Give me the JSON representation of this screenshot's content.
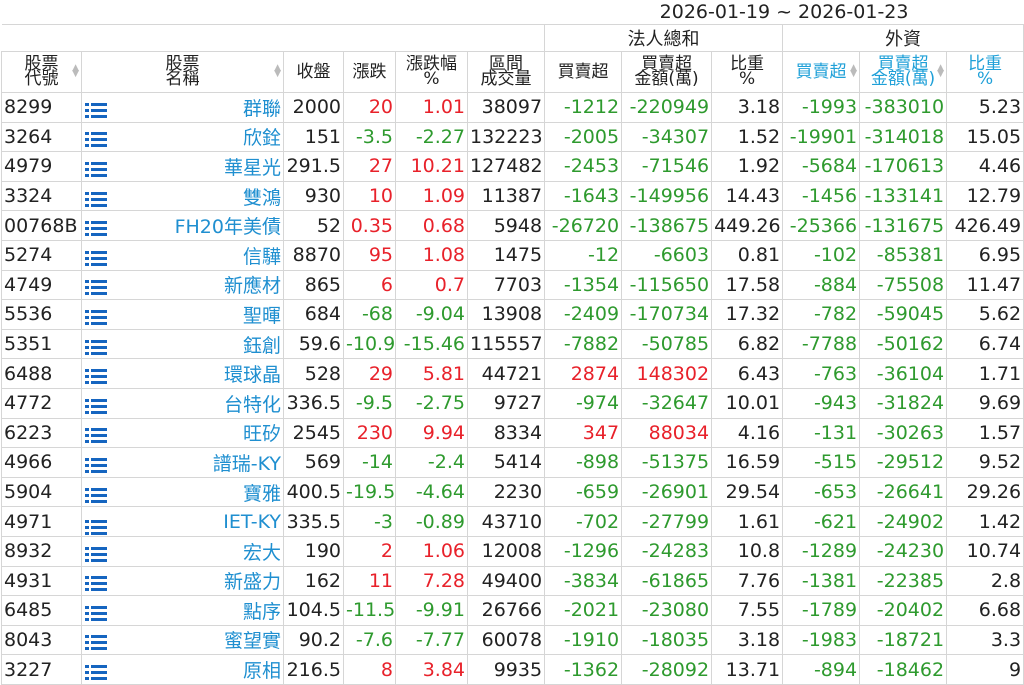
{
  "date_range": "2026-01-19 ~ 2026-01-23",
  "groups": {
    "institutional": "法人總和",
    "foreign": "外資"
  },
  "columns": {
    "code": [
      "股票",
      "代號"
    ],
    "name": [
      "股票",
      "名稱"
    ],
    "close": [
      "收盤",
      ""
    ],
    "change": [
      "漲跌",
      ""
    ],
    "change_pct": [
      "漲跌幅",
      "%"
    ],
    "volume": [
      "區間",
      "成交量"
    ],
    "inst_net": [
      "買賣超",
      ""
    ],
    "inst_amount": [
      "買賣超",
      "金額(萬)"
    ],
    "inst_ratio": [
      "比重",
      "%"
    ],
    "for_net": [
      "買賣超",
      ""
    ],
    "for_amount": [
      "買賣超",
      "金額(萬)"
    ],
    "for_ratio": [
      "比重",
      "%"
    ]
  },
  "colors": {
    "up": "#e8212a",
    "down": "#2e9a2e",
    "link": "#1f8fd0",
    "foreign_header": "#1fa0d8",
    "list_icon": "#1565c0"
  },
  "rows": [
    {
      "code": "8299",
      "name": "群聯",
      "close": "2000",
      "change": "20",
      "change_pct": "1.01",
      "volume": "38097",
      "inst_net": "-1212",
      "inst_amount": "-220949",
      "inst_ratio": "3.18",
      "for_net": "-1993",
      "for_amount": "-383010",
      "for_ratio": "5.23"
    },
    {
      "code": "3264",
      "name": "欣銓",
      "close": "151",
      "change": "-3.5",
      "change_pct": "-2.27",
      "volume": "132223",
      "inst_net": "-2005",
      "inst_amount": "-34307",
      "inst_ratio": "1.52",
      "for_net": "-19901",
      "for_amount": "-314018",
      "for_ratio": "15.05"
    },
    {
      "code": "4979",
      "name": "華星光",
      "close": "291.5",
      "change": "27",
      "change_pct": "10.21",
      "volume": "127482",
      "inst_net": "-2453",
      "inst_amount": "-71546",
      "inst_ratio": "1.92",
      "for_net": "-5684",
      "for_amount": "-170613",
      "for_ratio": "4.46"
    },
    {
      "code": "3324",
      "name": "雙鴻",
      "close": "930",
      "change": "10",
      "change_pct": "1.09",
      "volume": "11387",
      "inst_net": "-1643",
      "inst_amount": "-149956",
      "inst_ratio": "14.43",
      "for_net": "-1456",
      "for_amount": "-133141",
      "for_ratio": "12.79"
    },
    {
      "code": "00768B",
      "name": "FH20年美債",
      "close": "52",
      "change": "0.35",
      "change_pct": "0.68",
      "volume": "5948",
      "inst_net": "-26720",
      "inst_amount": "-138675",
      "inst_ratio": "449.26",
      "for_net": "-25366",
      "for_amount": "-131675",
      "for_ratio": "426.49"
    },
    {
      "code": "5274",
      "name": "信驊",
      "close": "8870",
      "change": "95",
      "change_pct": "1.08",
      "volume": "1475",
      "inst_net": "-12",
      "inst_amount": "-6603",
      "inst_ratio": "0.81",
      "for_net": "-102",
      "for_amount": "-85381",
      "for_ratio": "6.95"
    },
    {
      "code": "4749",
      "name": "新應材",
      "close": "865",
      "change": "6",
      "change_pct": "0.7",
      "volume": "7703",
      "inst_net": "-1354",
      "inst_amount": "-115650",
      "inst_ratio": "17.58",
      "for_net": "-884",
      "for_amount": "-75508",
      "for_ratio": "11.47"
    },
    {
      "code": "5536",
      "name": "聖暉",
      "close": "684",
      "change": "-68",
      "change_pct": "-9.04",
      "volume": "13908",
      "inst_net": "-2409",
      "inst_amount": "-170734",
      "inst_ratio": "17.32",
      "for_net": "-782",
      "for_amount": "-59045",
      "for_ratio": "5.62"
    },
    {
      "code": "5351",
      "name": "鈺創",
      "close": "59.6",
      "change": "-10.9",
      "change_pct": "-15.46",
      "volume": "115557",
      "inst_net": "-7882",
      "inst_amount": "-50785",
      "inst_ratio": "6.82",
      "for_net": "-7788",
      "for_amount": "-50162",
      "for_ratio": "6.74"
    },
    {
      "code": "6488",
      "name": "環球晶",
      "close": "528",
      "change": "29",
      "change_pct": "5.81",
      "volume": "44721",
      "inst_net": "2874",
      "inst_amount": "148302",
      "inst_ratio": "6.43",
      "for_net": "-763",
      "for_amount": "-36104",
      "for_ratio": "1.71"
    },
    {
      "code": "4772",
      "name": "台特化",
      "close": "336.5",
      "change": "-9.5",
      "change_pct": "-2.75",
      "volume": "9727",
      "inst_net": "-974",
      "inst_amount": "-32647",
      "inst_ratio": "10.01",
      "for_net": "-943",
      "for_amount": "-31824",
      "for_ratio": "9.69"
    },
    {
      "code": "6223",
      "name": "旺矽",
      "close": "2545",
      "change": "230",
      "change_pct": "9.94",
      "volume": "8334",
      "inst_net": "347",
      "inst_amount": "88034",
      "inst_ratio": "4.16",
      "for_net": "-131",
      "for_amount": "-30263",
      "for_ratio": "1.57"
    },
    {
      "code": "4966",
      "name": "譜瑞-KY",
      "close": "569",
      "change": "-14",
      "change_pct": "-2.4",
      "volume": "5414",
      "inst_net": "-898",
      "inst_amount": "-51375",
      "inst_ratio": "16.59",
      "for_net": "-515",
      "for_amount": "-29512",
      "for_ratio": "9.52"
    },
    {
      "code": "5904",
      "name": "寶雅",
      "close": "400.5",
      "change": "-19.5",
      "change_pct": "-4.64",
      "volume": "2230",
      "inst_net": "-659",
      "inst_amount": "-26901",
      "inst_ratio": "29.54",
      "for_net": "-653",
      "for_amount": "-26641",
      "for_ratio": "29.26"
    },
    {
      "code": "4971",
      "name": "IET-KY",
      "close": "335.5",
      "change": "-3",
      "change_pct": "-0.89",
      "volume": "43710",
      "inst_net": "-702",
      "inst_amount": "-27799",
      "inst_ratio": "1.61",
      "for_net": "-621",
      "for_amount": "-24902",
      "for_ratio": "1.42"
    },
    {
      "code": "8932",
      "name": "宏大",
      "close": "190",
      "change": "2",
      "change_pct": "1.06",
      "volume": "12008",
      "inst_net": "-1296",
      "inst_amount": "-24283",
      "inst_ratio": "10.8",
      "for_net": "-1289",
      "for_amount": "-24230",
      "for_ratio": "10.74"
    },
    {
      "code": "4931",
      "name": "新盛力",
      "close": "162",
      "change": "11",
      "change_pct": "7.28",
      "volume": "49400",
      "inst_net": "-3834",
      "inst_amount": "-61865",
      "inst_ratio": "7.76",
      "for_net": "-1381",
      "for_amount": "-22385",
      "for_ratio": "2.8"
    },
    {
      "code": "6485",
      "name": "點序",
      "close": "104.5",
      "change": "-11.5",
      "change_pct": "-9.91",
      "volume": "26766",
      "inst_net": "-2021",
      "inst_amount": "-23080",
      "inst_ratio": "7.55",
      "for_net": "-1789",
      "for_amount": "-20402",
      "for_ratio": "6.68"
    },
    {
      "code": "8043",
      "name": "蜜望實",
      "close": "90.2",
      "change": "-7.6",
      "change_pct": "-7.77",
      "volume": "60078",
      "inst_net": "-1910",
      "inst_amount": "-18035",
      "inst_ratio": "3.18",
      "for_net": "-1983",
      "for_amount": "-18721",
      "for_ratio": "3.3"
    },
    {
      "code": "3227",
      "name": "原相",
      "close": "216.5",
      "change": "8",
      "change_pct": "3.84",
      "volume": "9935",
      "inst_net": "-1362",
      "inst_amount": "-28092",
      "inst_ratio": "13.71",
      "for_net": "-894",
      "for_amount": "-18462",
      "for_ratio": "9"
    }
  ]
}
